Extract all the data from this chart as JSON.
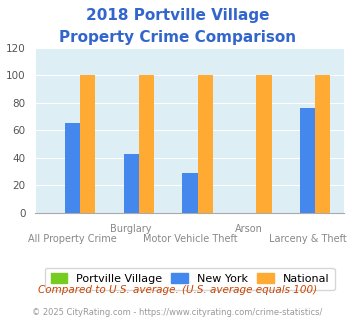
{
  "title_line1": "2018 Portville Village",
  "title_line2": "Property Crime Comparison",
  "title_color": "#3366cc",
  "groups": [
    "All Property Crime",
    "Burglary",
    "Motor Vehicle Theft",
    "Arson",
    "Larceny & Theft"
  ],
  "portville_values": [
    0,
    0,
    0,
    0,
    0
  ],
  "ny_values": [
    65,
    43,
    29,
    0,
    76
  ],
  "national_values": [
    100,
    100,
    100,
    100,
    100
  ],
  "portville_color": "#77cc22",
  "ny_color": "#4488ee",
  "national_color": "#ffaa33",
  "plot_bg": "#ddeef5",
  "ylim": [
    0,
    120
  ],
  "yticks": [
    0,
    20,
    40,
    60,
    80,
    100,
    120
  ],
  "legend_labels": [
    "Portville Village",
    "New York",
    "National"
  ],
  "upper_labels": [
    "",
    "Burglary",
    "",
    "Arson",
    ""
  ],
  "lower_labels": [
    "All Property Crime",
    "",
    "Motor Vehicle Theft",
    "",
    "Larceny & Theft"
  ],
  "footnote1": "Compared to U.S. average. (U.S. average equals 100)",
  "footnote2": "© 2025 CityRating.com - https://www.cityrating.com/crime-statistics/",
  "footnote1_color": "#cc4400",
  "footnote2_color": "#999999",
  "bar_width": 0.26
}
